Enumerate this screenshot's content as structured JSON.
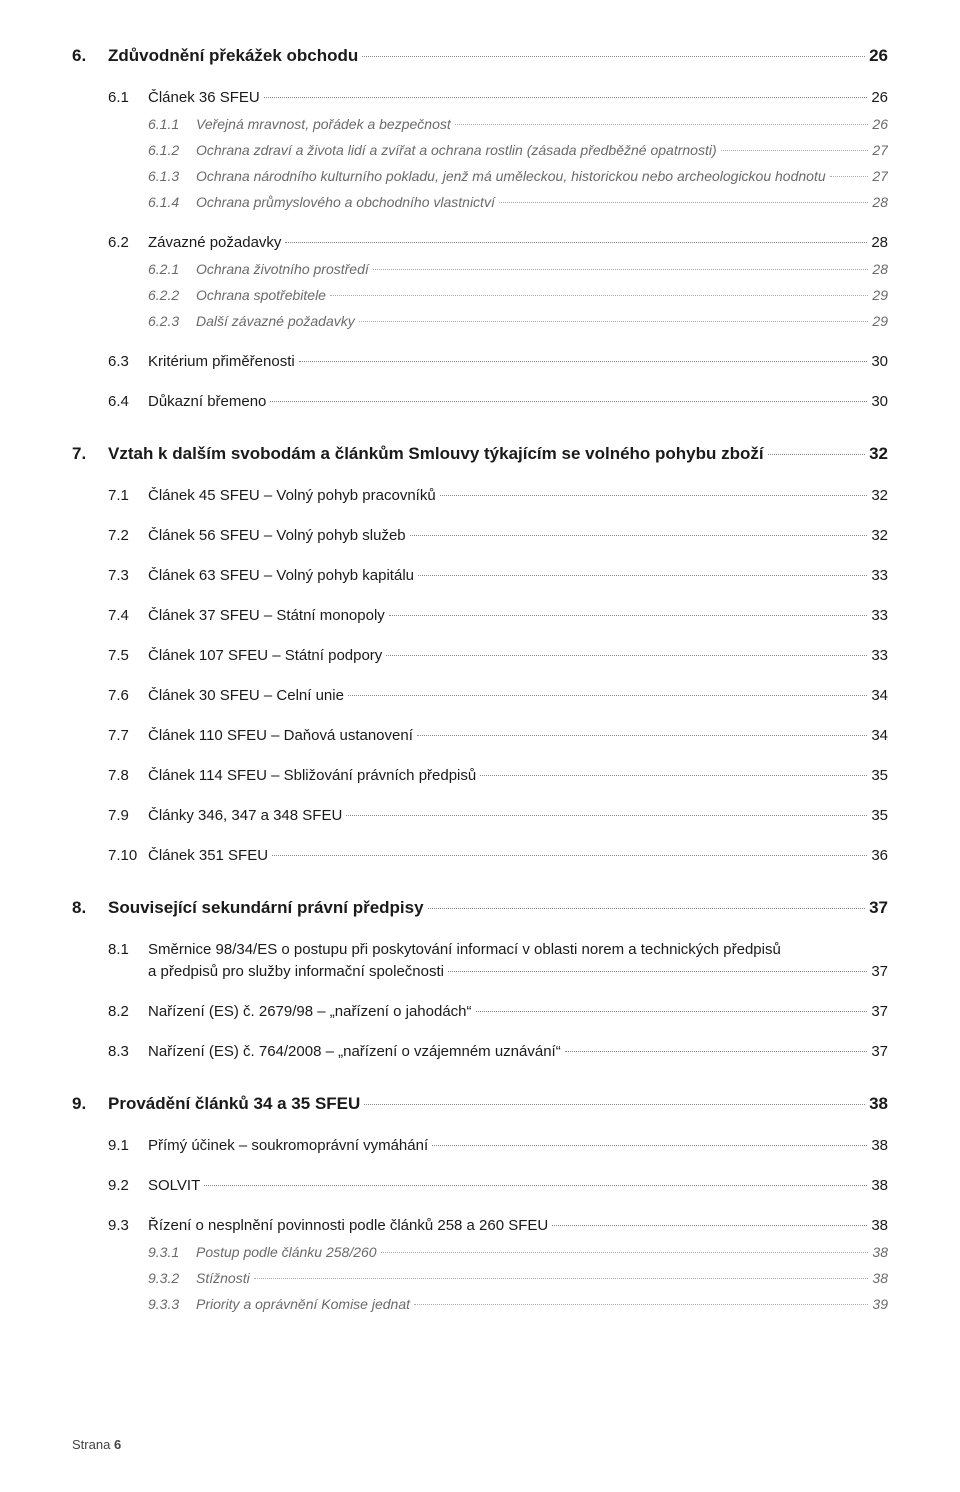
{
  "footer": {
    "label": "Strana",
    "page": "6"
  },
  "toc": [
    {
      "id": "e6",
      "lvl": 1,
      "num": "6.",
      "title": "Zdůvodnění překážek obchodu",
      "page": "26",
      "first": true
    },
    {
      "id": "e61",
      "lvl": 2,
      "num": "6.1",
      "title": "Článek 36 SFEU",
      "page": "26"
    },
    {
      "id": "e611",
      "lvl": 3,
      "num": "6.1.1",
      "title": "Veřejná mravnost, pořádek a bezpečnost",
      "page": "26"
    },
    {
      "id": "e612",
      "lvl": 3,
      "num": "6.1.2",
      "title": "Ochrana zdraví a života lidí a zvířat a ochrana rostlin (zásada předběžné opatrnosti)",
      "page": "27"
    },
    {
      "id": "e613",
      "lvl": 3,
      "num": "6.1.3",
      "title": "Ochrana národního kulturního pokladu, jenž má uměleckou, historickou nebo archeologickou hodnotu",
      "page": "27"
    },
    {
      "id": "e614",
      "lvl": 3,
      "num": "6.1.4",
      "title": "Ochrana průmyslového a obchodního vlastnictví",
      "page": "28"
    },
    {
      "id": "e62",
      "lvl": 2,
      "num": "6.2",
      "title": "Závazné požadavky",
      "page": "28",
      "gap": true
    },
    {
      "id": "e621",
      "lvl": 3,
      "num": "6.2.1",
      "title": "Ochrana životního prostředí",
      "page": "28"
    },
    {
      "id": "e622",
      "lvl": 3,
      "num": "6.2.2",
      "title": "Ochrana spotřebitele",
      "page": "29"
    },
    {
      "id": "e623",
      "lvl": 3,
      "num": "6.2.3",
      "title": "Další závazné požadavky",
      "page": "29"
    },
    {
      "id": "e63",
      "lvl": 2,
      "num": "6.3",
      "title": "Kritérium přiměřenosti",
      "page": "30",
      "gap": true
    },
    {
      "id": "e64",
      "lvl": 2,
      "num": "6.4",
      "title": "Důkazní břemeno",
      "page": "30"
    },
    {
      "id": "e7",
      "lvl": 1,
      "num": "7.",
      "title": "Vztah k dalším svobodám a článkům Smlouvy týkajícím se volného pohybu zboží",
      "page": "32"
    },
    {
      "id": "e71",
      "lvl": 2,
      "num": "7.1",
      "title": "Článek 45 SFEU – Volný pohyb pracovníků",
      "page": "32"
    },
    {
      "id": "e72",
      "lvl": 2,
      "num": "7.2",
      "title": "Článek 56 SFEU – Volný pohyb služeb",
      "page": "32"
    },
    {
      "id": "e73",
      "lvl": 2,
      "num": "7.3",
      "title": "Článek 63 SFEU – Volný pohyb kapitálu",
      "page": "33"
    },
    {
      "id": "e74",
      "lvl": 2,
      "num": "7.4",
      "title": "Článek 37 SFEU – Státní monopoly",
      "page": "33"
    },
    {
      "id": "e75",
      "lvl": 2,
      "num": "7.5",
      "title": "Článek 107 SFEU – Státní podpory",
      "page": "33"
    },
    {
      "id": "e76",
      "lvl": 2,
      "num": "7.6",
      "title": "Článek 30 SFEU – Celní unie",
      "page": "34"
    },
    {
      "id": "e77",
      "lvl": 2,
      "num": "7.7",
      "title": "Článek 110 SFEU – Daňová ustanovení",
      "page": "34"
    },
    {
      "id": "e78",
      "lvl": 2,
      "num": "7.8",
      "title": "Článek 114 SFEU – Sbližování právních předpisů",
      "page": "35"
    },
    {
      "id": "e79",
      "lvl": 2,
      "num": "7.9",
      "title": "Články 346, 347 a 348 SFEU",
      "page": "35"
    },
    {
      "id": "e710",
      "lvl": 2,
      "num": "7.10",
      "title": "Článek 351 SFEU",
      "page": "36"
    },
    {
      "id": "e8",
      "lvl": 1,
      "num": "8.",
      "title": "Související sekundární právní předpisy",
      "page": "37"
    },
    {
      "id": "e81",
      "lvl": "2m",
      "num": "8.1",
      "title_line1": "Směrnice 98/34/ES o postupu při poskytování informací v oblasti norem a technických předpisů",
      "title_line2": "a předpisů pro služby informační společnosti",
      "page": "37"
    },
    {
      "id": "e82",
      "lvl": 2,
      "num": "8.2",
      "title": "Nařízení (ES) č. 2679/98 – „nařízení o jahodách“",
      "page": "37"
    },
    {
      "id": "e83",
      "lvl": 2,
      "num": "8.3",
      "title": "Nařízení (ES) č. 764/2008 – „nařízení o vzájemném uznávání“",
      "page": "37"
    },
    {
      "id": "e9",
      "lvl": 1,
      "num": "9.",
      "title": "Provádění článků 34 a 35 SFEU",
      "page": "38"
    },
    {
      "id": "e91",
      "lvl": 2,
      "num": "9.1",
      "title": "Přímý účinek – soukromoprávní vymáhání",
      "page": "38"
    },
    {
      "id": "e92",
      "lvl": 2,
      "num": "9.2",
      "title": "SOLVIT",
      "page": "38"
    },
    {
      "id": "e93",
      "lvl": 2,
      "num": "9.3",
      "title": "Řízení o nesplnění povinnosti podle článků 258 a 260 SFEU",
      "page": "38"
    },
    {
      "id": "e931",
      "lvl": 3,
      "num": "9.3.1",
      "title": "Postup podle článku 258/260",
      "page": "38"
    },
    {
      "id": "e932",
      "lvl": 3,
      "num": "9.3.2",
      "title": "Stížnosti",
      "page": "38"
    },
    {
      "id": "e933",
      "lvl": 3,
      "num": "9.3.3",
      "title": "Priority a oprávnění Komise jednat",
      "page": "39"
    }
  ]
}
